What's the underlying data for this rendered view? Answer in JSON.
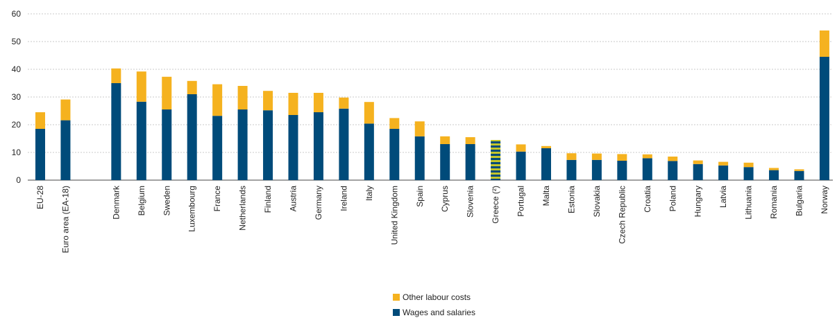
{
  "chart_data": {
    "type": "bar",
    "stacked": true,
    "ylim": [
      0,
      60
    ],
    "yticks": [
      0,
      10,
      20,
      30,
      40,
      50,
      60
    ],
    "grid": true,
    "legend_position": "bottom",
    "categories": [
      "EU-28",
      "Euro area (EA-18)",
      "",
      "Denmark",
      "Belgium",
      "Sweden",
      "Luxembourg",
      "France",
      "Netherlands",
      "Finland",
      "Austria",
      "Germany",
      "Ireland",
      "Italy",
      "United Kingdom",
      "Spain",
      "Cyprus",
      "Slovenia",
      "Greece (²)",
      "Portugal",
      "Malta",
      "Estonia",
      "Slovakia",
      "Czech Republic",
      "Croatia",
      "Poland",
      "Hungary",
      "Latvia",
      "Lithuania",
      "Romania",
      "Bulgaria",
      "Norway"
    ],
    "series": [
      {
        "name": "Wages and salaries",
        "color": "#004b7a",
        "values": [
          18.5,
          21.6,
          null,
          35.0,
          28.3,
          25.5,
          31.0,
          23.2,
          25.5,
          25.2,
          23.5,
          24.5,
          25.8,
          20.4,
          18.5,
          15.8,
          13.0,
          13.0,
          14.5,
          10.3,
          11.5,
          7.3,
          7.3,
          7.0,
          7.9,
          6.9,
          5.8,
          5.3,
          4.7,
          3.6,
          3.3,
          44.5
        ]
      },
      {
        "name": "Other labour costs",
        "color": "#f5b21f",
        "values": [
          6.0,
          7.5,
          null,
          5.3,
          10.9,
          11.8,
          4.8,
          11.4,
          8.5,
          7.0,
          8.0,
          7.0,
          4.0,
          7.8,
          3.9,
          5.4,
          2.8,
          2.5,
          null,
          2.6,
          0.8,
          2.4,
          2.3,
          2.4,
          1.4,
          1.6,
          1.3,
          1.3,
          1.6,
          0.8,
          0.6,
          9.5
        ]
      }
    ],
    "special_bars": [
      {
        "category": "Greece (²)",
        "style": "hatched",
        "total": 14.5,
        "stripe_colors": [
          "#004b7a",
          "#c5c52a"
        ]
      }
    ]
  },
  "legend": {
    "items": [
      {
        "label": "Other labour costs",
        "color": "#f5b21f"
      },
      {
        "label": "Wages and salaries",
        "color": "#004b7a"
      }
    ]
  }
}
